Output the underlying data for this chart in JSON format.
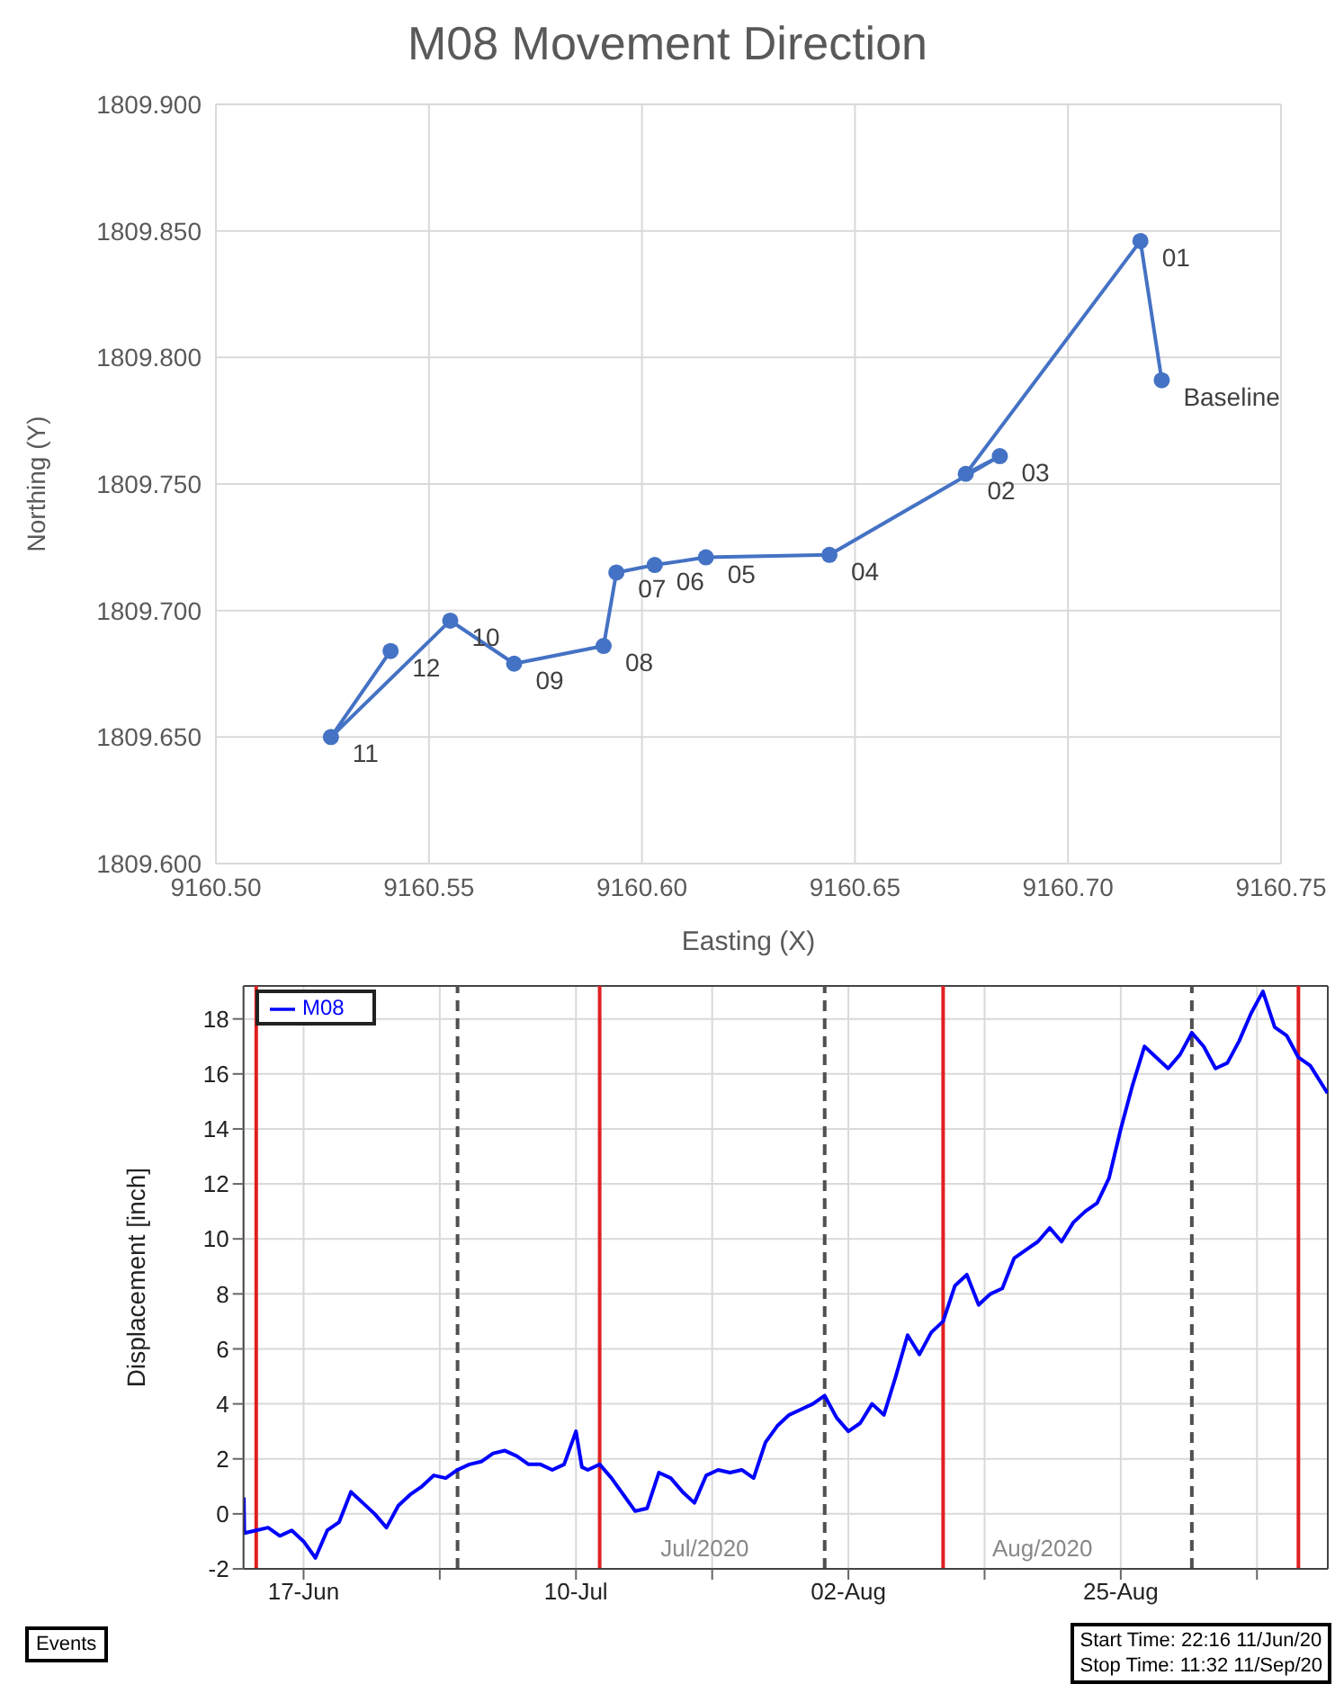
{
  "chart_data": [
    {
      "type": "line",
      "title": "M08 Movement Direction",
      "xlabel": "Easting (X)",
      "ylabel": "Northing (Y)",
      "series": [
        {
          "color": "#4472c4",
          "x": [
            9160.722,
            9160.717,
            9160.676,
            9160.684,
            9160.644,
            9160.615,
            9160.603,
            9160.594,
            9160.591,
            9160.57,
            9160.555,
            9160.527,
            9160.541
          ],
          "values": [
            1809.791,
            1809.846,
            1809.754,
            1809.761,
            1809.722,
            1809.721,
            1809.718,
            1809.715,
            1809.686,
            1809.679,
            1809.696,
            1809.65,
            1809.684
          ]
        }
      ],
      "annotations": [
        {
          "text": "Baseline",
          "x": 9160.722,
          "y": 1809.791
        },
        {
          "text": "01",
          "x": 9160.717,
          "y": 1809.846
        },
        {
          "text": "02",
          "x": 9160.676,
          "y": 1809.754
        },
        {
          "text": "03",
          "x": 9160.684,
          "y": 1809.761
        },
        {
          "text": "04",
          "x": 9160.644,
          "y": 1809.722
        },
        {
          "text": "05",
          "x": 9160.615,
          "y": 1809.721
        },
        {
          "text": "06",
          "x": 9160.603,
          "y": 1809.718
        },
        {
          "text": "07",
          "x": 9160.594,
          "y": 1809.715
        },
        {
          "text": "08",
          "x": 9160.591,
          "y": 1809.686
        },
        {
          "text": "09",
          "x": 9160.57,
          "y": 1809.679
        },
        {
          "text": "10",
          "x": 9160.555,
          "y": 1809.696
        },
        {
          "text": "11",
          "x": 9160.527,
          "y": 1809.65
        },
        {
          "text": "12",
          "x": 9160.541,
          "y": 1809.684
        }
      ],
      "xlim": [
        9160.5,
        9160.75
      ],
      "xticks": [
        {
          "value": 9160.5,
          "label": "9160.50"
        },
        {
          "value": 9160.55,
          "label": "9160.55"
        },
        {
          "value": 9160.6,
          "label": "9160.60"
        },
        {
          "value": 9160.65,
          "label": "9160.65"
        },
        {
          "value": 9160.7,
          "label": "9160.70"
        },
        {
          "value": 9160.75,
          "label": "9160.75"
        }
      ],
      "ylim": [
        1809.6,
        1809.9
      ],
      "yticks": [
        {
          "value": 1809.6,
          "label": "1809.600"
        },
        {
          "value": 1809.65,
          "label": "1809.650"
        },
        {
          "value": 1809.7,
          "label": "1809.700"
        },
        {
          "value": 1809.75,
          "label": "1809.750"
        },
        {
          "value": 1809.8,
          "label": "1809.800"
        },
        {
          "value": 1809.85,
          "label": "1809.850"
        },
        {
          "value": 1809.9,
          "label": "1809.900"
        }
      ],
      "grid": true,
      "marker": "circle",
      "line_style": "solid"
    },
    {
      "type": "line",
      "ylabel": "Displacement [inch]",
      "legend": "top left",
      "x": [
        "2020-06-11T23:00",
        "2020-06-12",
        "2020-06-13",
        "2020-06-14",
        "2020-06-15",
        "2020-06-16",
        "2020-06-17",
        "2020-06-18",
        "2020-06-19",
        "2020-06-20",
        "2020-06-21",
        "2020-06-22",
        "2020-06-23",
        "2020-06-24",
        "2020-06-25",
        "2020-06-26",
        "2020-06-27",
        "2020-06-28",
        "2020-06-29",
        "2020-06-30",
        "2020-07-01",
        "2020-07-02",
        "2020-07-03",
        "2020-07-04",
        "2020-07-05",
        "2020-07-06",
        "2020-07-07",
        "2020-07-08",
        "2020-07-09",
        "2020-07-10",
        "2020-07-10T12:00",
        "2020-07-11",
        "2020-07-12",
        "2020-07-13",
        "2020-07-14",
        "2020-07-15",
        "2020-07-16",
        "2020-07-17",
        "2020-07-18",
        "2020-07-19",
        "2020-07-20",
        "2020-07-21",
        "2020-07-22",
        "2020-07-23",
        "2020-07-24",
        "2020-07-25",
        "2020-07-26",
        "2020-07-27",
        "2020-07-28",
        "2020-07-29",
        "2020-07-30",
        "2020-07-31",
        "2020-08-01",
        "2020-08-02",
        "2020-08-03",
        "2020-08-04",
        "2020-08-05",
        "2020-08-06",
        "2020-08-07",
        "2020-08-08",
        "2020-08-09",
        "2020-08-10",
        "2020-08-11",
        "2020-08-12",
        "2020-08-13",
        "2020-08-14",
        "2020-08-15",
        "2020-08-16",
        "2020-08-17",
        "2020-08-18",
        "2020-08-19",
        "2020-08-20",
        "2020-08-21",
        "2020-08-22",
        "2020-08-23",
        "2020-08-24",
        "2020-08-25",
        "2020-08-26",
        "2020-08-27",
        "2020-08-28",
        "2020-08-29",
        "2020-08-30",
        "2020-08-31",
        "2020-09-01",
        "2020-09-02",
        "2020-09-03",
        "2020-09-04",
        "2020-09-05",
        "2020-09-06",
        "2020-09-07",
        "2020-09-08",
        "2020-09-09",
        "2020-09-10",
        "2020-09-11T11:00"
      ],
      "series": [
        {
          "name": "M08",
          "color": "#0000ff",
          "values": [
            0.6,
            -0.7,
            -0.6,
            -0.5,
            -0.8,
            -0.6,
            -1.0,
            -1.6,
            -0.6,
            -0.3,
            0.8,
            0.4,
            0.0,
            -0.5,
            0.3,
            0.7,
            1.0,
            1.4,
            1.3,
            1.6,
            1.8,
            1.9,
            2.2,
            2.3,
            2.1,
            1.8,
            1.8,
            1.6,
            1.8,
            3.0,
            1.7,
            1.6,
            1.8,
            1.3,
            0.7,
            0.1,
            0.2,
            1.5,
            1.3,
            0.8,
            0.4,
            1.4,
            1.6,
            1.5,
            1.6,
            1.3,
            2.6,
            3.2,
            3.6,
            3.8,
            4.0,
            4.3,
            3.5,
            3.0,
            3.3,
            4.0,
            3.6,
            5.0,
            6.5,
            5.8,
            6.6,
            7.0,
            8.3,
            8.7,
            7.6,
            8.0,
            8.2,
            9.3,
            9.6,
            9.9,
            10.4,
            9.9,
            10.6,
            11.0,
            11.3,
            12.2,
            14.0,
            15.6,
            17.0,
            16.6,
            16.2,
            16.7,
            17.5,
            17.0,
            16.2,
            16.4,
            17.2,
            18.2,
            19.0,
            17.7,
            17.4,
            16.6,
            16.3,
            15.3
          ]
        }
      ],
      "xlim": [
        "2020-06-11T22:16",
        "2020-09-11T11:32"
      ],
      "xticks": [
        {
          "value": "2020-06-17",
          "label": "17-Jun"
        },
        {
          "value": "2020-06-28T12:00",
          "label": null
        },
        {
          "value": "2020-07-10",
          "label": "10-Jul"
        },
        {
          "value": "2020-07-21T12:00",
          "label": null
        },
        {
          "value": "2020-08-02",
          "label": "02-Aug"
        },
        {
          "value": "2020-08-13T12:00",
          "label": null
        },
        {
          "value": "2020-08-25",
          "label": "25-Aug"
        },
        {
          "value": "2020-09-05T12:00",
          "label": null
        }
      ],
      "ylim": [
        -2,
        19.2
      ],
      "yticks": [
        -2,
        0,
        2,
        4,
        6,
        8,
        10,
        12,
        14,
        16,
        18
      ],
      "ref_lines": [
        {
          "axis": "x",
          "value": "2020-06-13",
          "color": "#e02020",
          "line_style": "solid"
        },
        {
          "axis": "x",
          "value": "2020-06-30",
          "color": "#505050",
          "line_style": "dashed"
        },
        {
          "axis": "x",
          "value": "2020-07-12",
          "label": "Jul/2020",
          "color": "#e02020",
          "line_style": "solid"
        },
        {
          "axis": "x",
          "value": "2020-07-31",
          "color": "#505050",
          "line_style": "dashed"
        },
        {
          "axis": "x",
          "value": "2020-08-10",
          "label": "Aug/2020",
          "color": "#e02020",
          "line_style": "solid"
        },
        {
          "axis": "x",
          "value": "2020-08-31",
          "color": "#505050",
          "line_style": "dashed"
        },
        {
          "axis": "x",
          "value": "2020-09-09",
          "color": "#e02020",
          "line_style": "solid"
        }
      ],
      "annotations": [
        "Events",
        "Start Time: 22:16 11/Jun/20",
        "Stop Time: 11:32 11/Sep/20"
      ],
      "grid": true,
      "marker": "none",
      "line_style": "solid"
    }
  ]
}
